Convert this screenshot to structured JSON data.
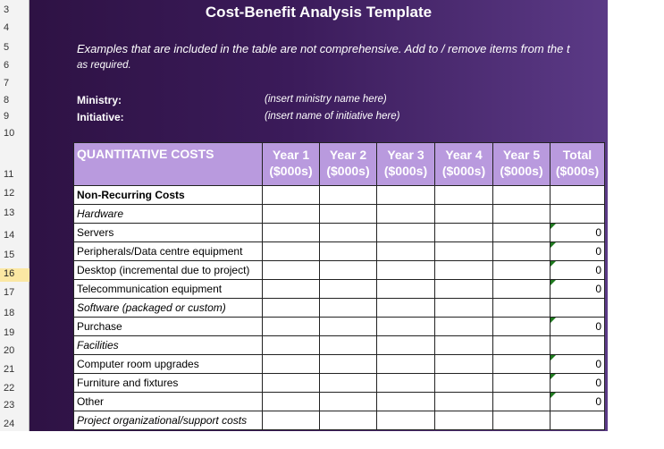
{
  "title": "Cost-Benefit Analysis Template",
  "description_line1": "Examples that are included in the table are not comprehensive.  Add to / remove items from the t",
  "description_line2": "as required.",
  "ministry_label": "Ministry:",
  "ministry_value": "(insert ministry name here)",
  "initiative_label": "Initiative:",
  "initiative_value": "(insert name of initiative here)",
  "row_numbers": [
    "3",
    "4",
    "5",
    "6",
    "7",
    "8",
    "9",
    "10",
    "11",
    "12",
    "13",
    "14",
    "15",
    "16",
    "17",
    "18",
    "19",
    "20",
    "21",
    "22",
    "23",
    "24"
  ],
  "selected_row": "16",
  "table": {
    "header": {
      "label": "QUANTITATIVE COSTS",
      "cols": [
        {
          "l1": "Year 1",
          "l2": "($000s)"
        },
        {
          "l1": "Year 2",
          "l2": "($000s)"
        },
        {
          "l1": "Year 3",
          "l2": "($000s)"
        },
        {
          "l1": "Year 4",
          "l2": "($000s)"
        },
        {
          "l1": "Year 5",
          "l2": "($000s)"
        },
        {
          "l1": "Total",
          "l2": "($000s)"
        }
      ]
    },
    "rows": [
      {
        "label": "Non-Recurring Costs",
        "style": "bold",
        "total": ""
      },
      {
        "label": "Hardware",
        "style": "ital",
        "total": ""
      },
      {
        "label": "Servers",
        "style": "",
        "total": "0"
      },
      {
        "label": "Peripherals/Data centre equipment",
        "style": "",
        "total": "0"
      },
      {
        "label": "Desktop (incremental due to project)",
        "style": "",
        "total": "0"
      },
      {
        "label": "Telecommunication equipment",
        "style": "",
        "total": "0"
      },
      {
        "label": "Software (packaged or custom)",
        "style": "ital",
        "total": ""
      },
      {
        "label": "Purchase",
        "style": "",
        "total": "0"
      },
      {
        "label": "Facilities",
        "style": "ital",
        "total": ""
      },
      {
        "label": "Computer room upgrades",
        "style": "",
        "total": "0"
      },
      {
        "label": "Furniture and fixtures",
        "style": "",
        "total": "0"
      },
      {
        "label": "Other",
        "style": "",
        "total": "0"
      },
      {
        "label": "Project organizational/support costs",
        "style": "ital",
        "total": ""
      }
    ]
  }
}
